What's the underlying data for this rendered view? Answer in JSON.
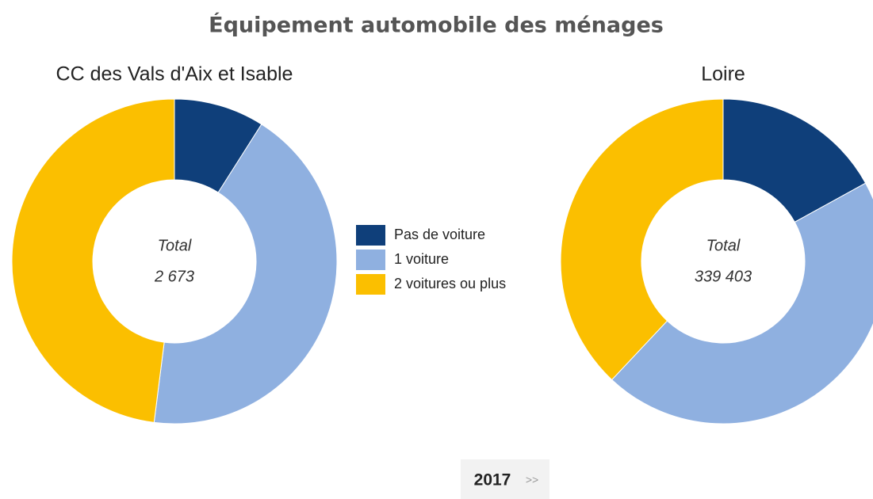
{
  "title": "Équipement automobile des ménages",
  "chart_data": [
    {
      "type": "pie",
      "title": "CC des Vals d'Aix et Isable",
      "center_label": "Total",
      "total": "2 673",
      "categories": [
        "Pas de voiture",
        "1 voiture",
        "2 voitures ou plus"
      ],
      "values": [
        9,
        43,
        48
      ],
      "colors": [
        "#0f3f7a",
        "#8fb0e0",
        "#fbbf00"
      ]
    },
    {
      "type": "pie",
      "title": "Loire",
      "center_label": "Total",
      "total": "339 403",
      "categories": [
        "Pas de voiture",
        "1 voiture",
        "2 voitures ou plus"
      ],
      "values": [
        17,
        45,
        38
      ],
      "colors": [
        "#0f3f7a",
        "#8fb0e0",
        "#fbbf00"
      ]
    }
  ],
  "year": "2017",
  "next": ">>"
}
